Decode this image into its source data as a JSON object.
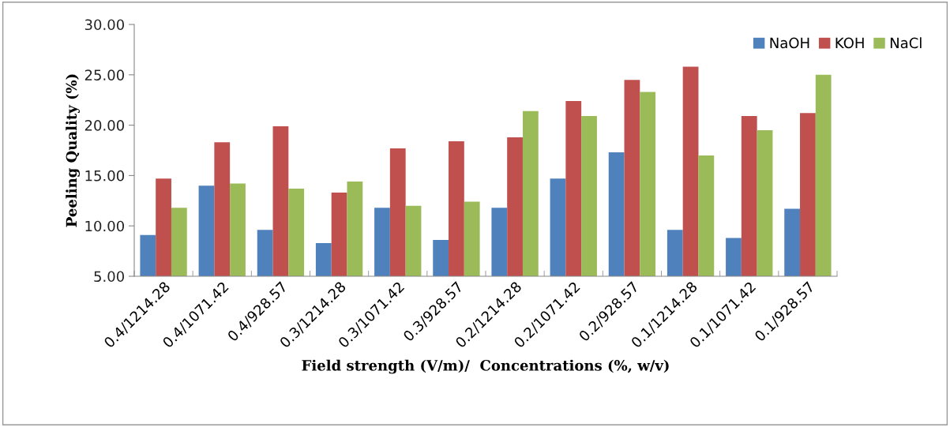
{
  "chart_data": {
    "type": "bar",
    "xlabel": "Field strength (V/m)/  Concentrations (%, w/v)",
    "ylabel": "Peeling Quality (%)",
    "categories": [
      "0.4/1214.28",
      "0.4/1071.42",
      "0.4/928.57",
      "0.3/1214.28",
      "0.3/1071.42",
      "0.3/928.57",
      "0.2/1214.28",
      "0.2/1071.42",
      "0.2/928.57",
      "0.1/1214.28",
      "0.1/1071.42",
      "0.1/928.57"
    ],
    "series": [
      {
        "name": "NaOH",
        "color": "#4f81bd",
        "values": [
          9.1,
          14.0,
          9.6,
          8.3,
          11.8,
          8.6,
          11.8,
          14.7,
          17.3,
          9.6,
          8.8,
          11.7
        ]
      },
      {
        "name": "KOH",
        "color": "#c0504d",
        "values": [
          14.7,
          18.3,
          19.9,
          13.3,
          17.7,
          18.4,
          18.8,
          22.4,
          24.5,
          25.8,
          20.9,
          21.2
        ]
      },
      {
        "name": "NaCl",
        "color": "#9bbb59",
        "values": [
          11.8,
          14.2,
          13.7,
          14.4,
          12.0,
          12.4,
          21.4,
          20.9,
          23.3,
          17.0,
          19.5,
          25.0
        ]
      }
    ],
    "ylim": [
      5,
      30
    ],
    "yticks": [
      {
        "value": 5,
        "label": "5.00"
      },
      {
        "value": 10,
        "label": "10.00"
      },
      {
        "value": 15,
        "label": "15.00"
      },
      {
        "value": 20,
        "label": "20.00"
      },
      {
        "value": 25,
        "label": "25.00"
      },
      {
        "value": 30,
        "label": "30.00"
      }
    ],
    "grid": false,
    "legend": "top right"
  }
}
